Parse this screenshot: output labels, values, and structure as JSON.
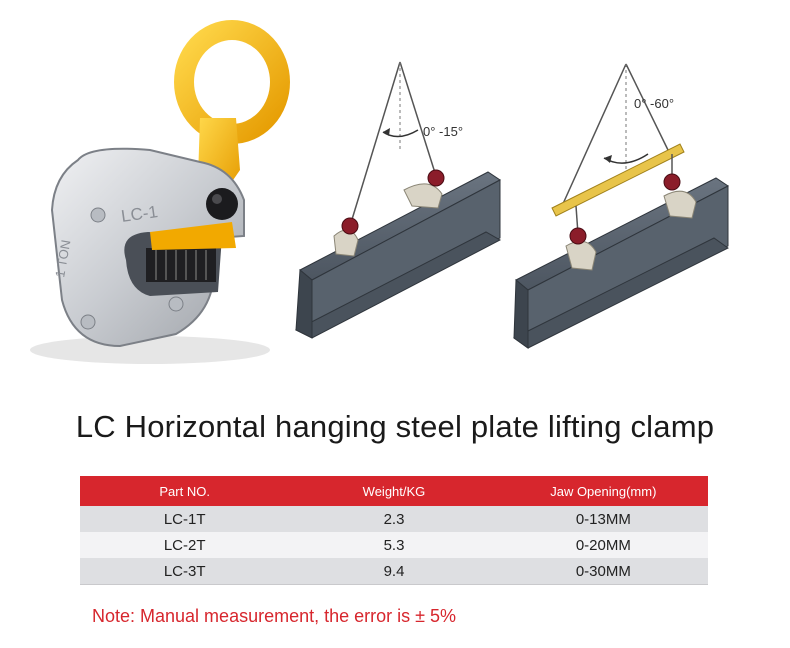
{
  "diagram_labels": {
    "angle_left": "0°  -15°",
    "angle_right": "0°  -60°"
  },
  "product": {
    "clamp_model_mark": "LC-1",
    "clamp_capacity_mark": "1 TON"
  },
  "title": "LC Horizontal hanging steel plate lifting clamp",
  "table": {
    "headers": [
      "Part NO.",
      "Weight/KG",
      "Jaw  Opening(mm)"
    ],
    "rows": [
      [
        "LC-1T",
        "2.3",
        "0-13MM"
      ],
      [
        "LC-2T",
        "5.3",
        "0-20MM"
      ],
      [
        "LC-3T",
        "9.4",
        "0-30MM"
      ]
    ]
  },
  "note": "Note: Manual measurement, the error is ± 5%",
  "colors": {
    "accent_red": "#d7262d",
    "clamp_yellow": "#f5b800"
  }
}
